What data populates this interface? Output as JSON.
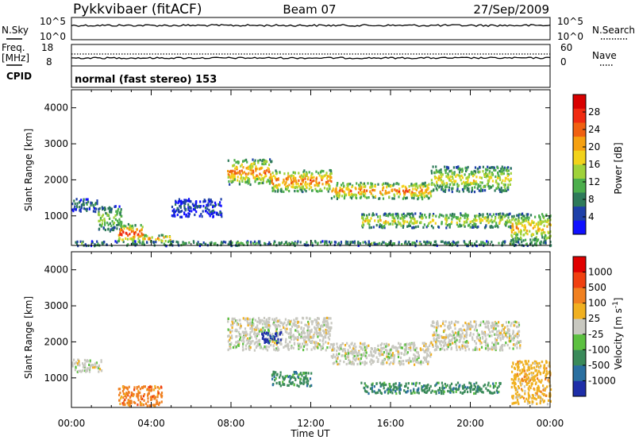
{
  "header": {
    "station": "Pykkvibaer (fitACF)",
    "beam": "Beam 07",
    "date": "27/Sep/2009"
  },
  "noise_panel": {
    "left_label": "N.Sky",
    "right_label": "N.Search",
    "tick_top": "10^5",
    "tick_bottom": "10^0",
    "line_style_right": "dotted"
  },
  "freq_panel": {
    "left_label_1": "Freq.",
    "left_label_2": "[MHz]",
    "right_label": "Nave",
    "left_ticks": [
      "18",
      "8"
    ],
    "right_ticks": [
      "60",
      "0"
    ]
  },
  "cpid_panel": {
    "label": "CPID",
    "text": "normal (fast stereo) 153"
  },
  "chart_data": [
    {
      "type": "heatmap",
      "name": "power",
      "ylabel": "Slant Range [km]",
      "xlabel": "",
      "x_ticks": [
        "00:00",
        "04:00",
        "08:00",
        "12:00",
        "16:00",
        "20:00",
        "00:00"
      ],
      "y_ticks": [
        1000,
        2000,
        3000,
        4000
      ],
      "ylim": [
        180,
        4500
      ],
      "xlim_hours": [
        0,
        24
      ],
      "colorbar": {
        "label": "Power [dB]",
        "ticks": [
          "4",
          "8",
          "12",
          "16",
          "20",
          "24",
          "28"
        ],
        "colors": [
          "#1010ff",
          "#1e40a8",
          "#2e7a5a",
          "#4cae4c",
          "#9fd23a",
          "#f2d21a",
          "#f5a010",
          "#f06010",
          "#f02a10",
          "#d80000"
        ]
      },
      "bands": [
        {
          "t0": 0.0,
          "t1": 1.3,
          "r0": 1150,
          "r1": 1500,
          "level": 2
        },
        {
          "t0": 1.3,
          "t1": 2.5,
          "r0": 600,
          "r1": 1300,
          "level": 4
        },
        {
          "t0": 2.3,
          "t1": 3.6,
          "r0": 300,
          "r1": 800,
          "level": 8
        },
        {
          "t0": 3.6,
          "t1": 5.0,
          "r0": 300,
          "r1": 500,
          "level": 7
        },
        {
          "t0": 5.0,
          "t1": 7.5,
          "r0": 1000,
          "r1": 1500,
          "level": 1
        },
        {
          "t0": 7.8,
          "t1": 10.0,
          "r0": 1900,
          "r1": 2600,
          "level": 7
        },
        {
          "t0": 10.0,
          "t1": 13.0,
          "r0": 1700,
          "r1": 2300,
          "level": 7
        },
        {
          "t0": 13.0,
          "t1": 18.0,
          "r0": 1500,
          "r1": 1950,
          "level": 7
        },
        {
          "t0": 18.0,
          "t1": 22.0,
          "r0": 1700,
          "r1": 2400,
          "level": 5
        },
        {
          "t0": 14.5,
          "t1": 22.0,
          "r0": 700,
          "r1": 1100,
          "level": 5
        },
        {
          "t0": 22.0,
          "t1": 24.0,
          "r0": 300,
          "r1": 1100,
          "level": 6
        },
        {
          "t0": 0.0,
          "t1": 24.0,
          "r0": 200,
          "r1": 330,
          "level": 3
        }
      ]
    },
    {
      "type": "heatmap",
      "name": "velocity",
      "ylabel": "Slant Range [km]",
      "xlabel": "Time UT",
      "x_ticks": [
        "00:00",
        "04:00",
        "08:00",
        "12:00",
        "16:00",
        "20:00",
        "00:00"
      ],
      "y_ticks": [
        1000,
        2000,
        3000,
        4000
      ],
      "ylim": [
        180,
        4500
      ],
      "xlim_hours": [
        0,
        24
      ],
      "colorbar": {
        "label": "Velocity [m s^-1]",
        "ticks": [
          "1000",
          "500",
          "100",
          "25",
          "-25",
          "-100",
          "-500",
          "-1000"
        ],
        "colors": [
          "#1e2ea8",
          "#2a6fa0",
          "#3a8a5a",
          "#5cc040",
          "#c8c8c0",
          "#f0b020",
          "#f08020",
          "#f04010",
          "#e00000"
        ]
      },
      "bands": [
        {
          "t0": 0.0,
          "t1": 1.5,
          "r0": 1200,
          "r1": 1550,
          "color": 4
        },
        {
          "t0": 2.3,
          "t1": 4.5,
          "r0": 250,
          "r1": 800,
          "color": 6
        },
        {
          "t0": 7.8,
          "t1": 13.0,
          "r0": 1800,
          "r1": 2700,
          "color": 4
        },
        {
          "t0": 13.0,
          "t1": 18.0,
          "r0": 1400,
          "r1": 2000,
          "color": 4
        },
        {
          "t0": 18.0,
          "t1": 22.5,
          "r0": 1800,
          "r1": 2600,
          "color": 4
        },
        {
          "t0": 10.0,
          "t1": 12.0,
          "r0": 800,
          "r1": 1200,
          "color": 2
        },
        {
          "t0": 14.5,
          "t1": 21.5,
          "r0": 600,
          "r1": 900,
          "color": 2
        },
        {
          "t0": 22.0,
          "t1": 24.0,
          "r0": 300,
          "r1": 1500,
          "color": 5
        },
        {
          "t0": 9.5,
          "t1": 10.5,
          "r0": 2000,
          "r1": 2300,
          "color": 0
        }
      ]
    }
  ]
}
